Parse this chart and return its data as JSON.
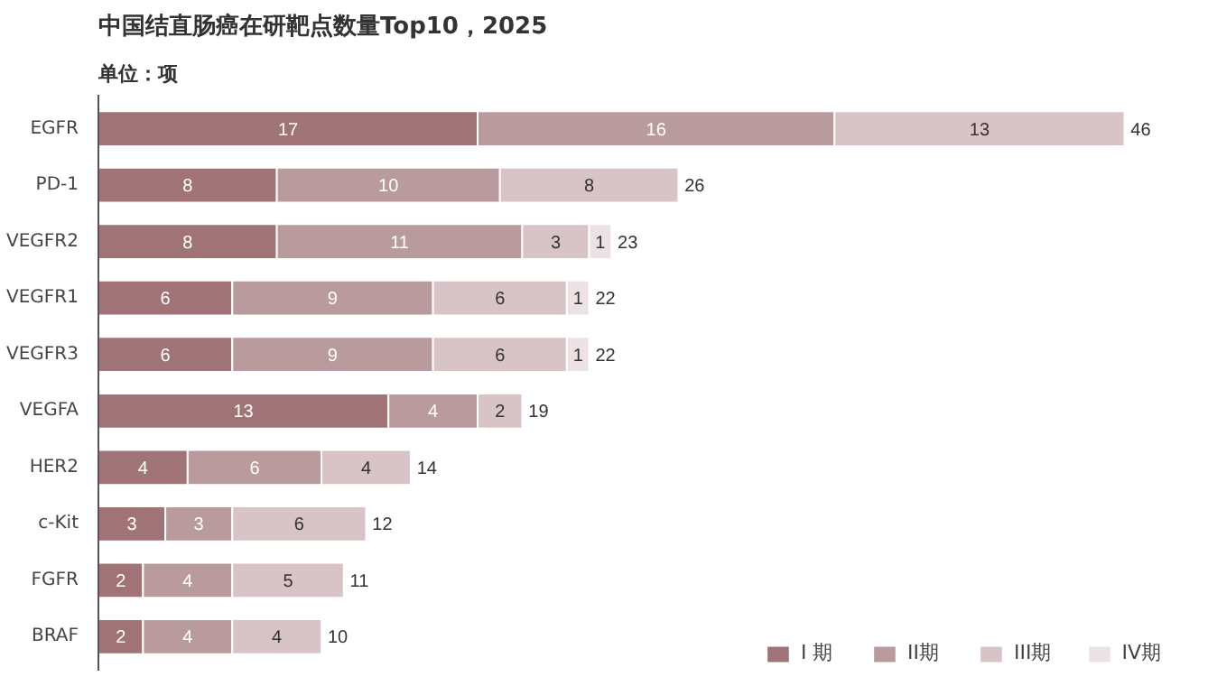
{
  "chart_data": {
    "type": "bar",
    "orientation": "horizontal",
    "stacked": true,
    "title": "中国结直肠癌在研靶点数量Top10，2025",
    "subtitle": "单位：项",
    "categories": [
      "EGFR",
      "PD-1",
      "VEGFR2",
      "VEGFR1",
      "VEGFR3",
      "VEGFA",
      "HER2",
      "c-Kit",
      "FGFR",
      "BRAF"
    ],
    "series": [
      {
        "name": "I 期",
        "color": "#a07476",
        "values": [
          17,
          8,
          8,
          6,
          6,
          13,
          4,
          3,
          2,
          2
        ]
      },
      {
        "name": "II期",
        "color": "#b99b9e",
        "values": [
          16,
          10,
          11,
          9,
          9,
          4,
          6,
          3,
          4,
          4
        ]
      },
      {
        "name": "III期",
        "color": "#d8c4c6",
        "values": [
          13,
          8,
          3,
          6,
          6,
          2,
          4,
          6,
          5,
          4
        ]
      },
      {
        "name": "IV期",
        "color": "#ede2e3",
        "values": [
          null,
          null,
          1,
          1,
          1,
          null,
          null,
          null,
          null,
          null
        ]
      }
    ],
    "data_labels": true,
    "totals": [
      "46",
      "26",
      "23",
      "22",
      "22",
      "19",
      "14",
      "12",
      "11",
      "10"
    ],
    "legend": "bottom right",
    "grid": false
  }
}
